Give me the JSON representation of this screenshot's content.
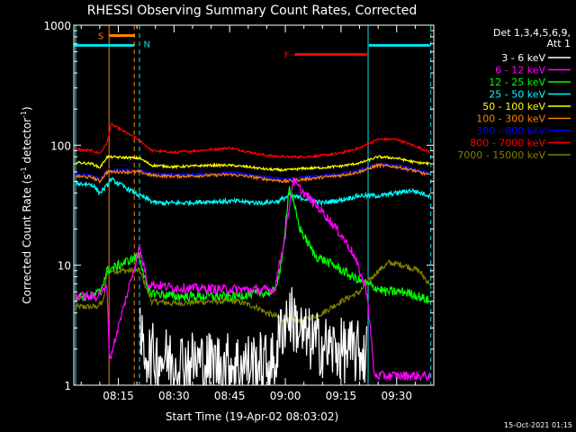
{
  "chart_data": {
    "type": "line",
    "title": "RHESSI Observing Summary Count Rates, Corrected",
    "xlabel": "Start Time (19-Apr-02 08:03:02)",
    "ylabel_main": "Corrected Count Rate (s",
    "ylabel_sup1": "-1",
    "ylabel_mid": " detector",
    "ylabel_sup2": "-1",
    "ylabel_end": ")",
    "yscale": "log",
    "ylim": [
      1,
      1000
    ],
    "y_ticks": [
      {
        "value": 1,
        "label": "1"
      },
      {
        "value": 10,
        "label": "10"
      },
      {
        "value": 100,
        "label": "100"
      },
      {
        "value": 1000,
        "label": "1000"
      }
    ],
    "xlim_minutes": [
      483,
      580
    ],
    "x_ticks": [
      {
        "minute": 495,
        "label": "08:15"
      },
      {
        "minute": 510,
        "label": "08:30"
      },
      {
        "minute": 525,
        "label": "08:45"
      },
      {
        "minute": 540,
        "label": "09:00"
      },
      {
        "minute": 555,
        "label": "09:15"
      },
      {
        "minute": 570,
        "label": "09:30"
      }
    ],
    "legend_header": [
      "Det 1,3,4,5,6,9,",
      "Att 1"
    ],
    "legend_position": "right",
    "flags": [
      {
        "label": "S",
        "color": "#ff8000",
        "start": 492.5,
        "end": 499.5,
        "level": 820
      },
      {
        "label": "N",
        "color": "#00e5ee",
        "start": 483,
        "end": 499.3,
        "level": 680
      },
      {
        "label": "N",
        "color": "#00e5ee",
        "start": 562.5,
        "end": 579,
        "level": 680
      },
      {
        "label": "F",
        "color": "#ff0000",
        "start": 542.5,
        "end": 562,
        "level": 570
      }
    ],
    "vlines": [
      {
        "minute": 483.5,
        "color": "#00e5ee",
        "style": "solid"
      },
      {
        "minute": 492.5,
        "color": "#ff8000",
        "style": "solid"
      },
      {
        "minute": 499.3,
        "color": "#ff8000",
        "style": "dashed"
      },
      {
        "minute": 500.7,
        "color": "#00e5ee",
        "style": "dashed"
      },
      {
        "minute": 562.3,
        "color": "#00e5ee",
        "style": "solid"
      },
      {
        "minute": 579.2,
        "color": "#00e5ee",
        "style": "dashed"
      }
    ],
    "series": [
      {
        "name": "3 - 6 keV",
        "color": "#ffffff",
        "noise": 0.55,
        "points": [
          [
            500.7,
            2.4
          ],
          [
            503,
            1.8
          ],
          [
            510,
            1.6
          ],
          [
            525,
            1.5
          ],
          [
            537,
            1.5
          ],
          [
            539,
            3
          ],
          [
            541,
            4
          ],
          [
            545,
            2.5
          ],
          [
            552,
            2
          ],
          [
            558,
            1.9
          ],
          [
            562,
            1.8
          ]
        ]
      },
      {
        "name": "6 - 12 keV",
        "color": "#ff00ff",
        "noise": 0.08,
        "points": [
          [
            483.5,
            5.5
          ],
          [
            489,
            5.5
          ],
          [
            492,
            6.5
          ],
          [
            492.6,
            1.6
          ],
          [
            500.7,
            14
          ],
          [
            503,
            7
          ],
          [
            510,
            6.5
          ],
          [
            525,
            6.3
          ],
          [
            537,
            6.2
          ],
          [
            540,
            18
          ],
          [
            542,
            50
          ],
          [
            545,
            40
          ],
          [
            550,
            28
          ],
          [
            555,
            18
          ],
          [
            558,
            13
          ],
          [
            560,
            9
          ],
          [
            562,
            6
          ],
          [
            564,
            1.2
          ],
          [
            579,
            1.2
          ]
        ]
      },
      {
        "name": "12 - 25 keV",
        "color": "#00ff00",
        "noise": 0.08,
        "points": [
          [
            483.5,
            5.5
          ],
          [
            488,
            5.5
          ],
          [
            490,
            6
          ],
          [
            492,
            9
          ],
          [
            500.7,
            12
          ],
          [
            503,
            6
          ],
          [
            510,
            5.5
          ],
          [
            525,
            5.5
          ],
          [
            537,
            6
          ],
          [
            539,
            10
          ],
          [
            541,
            45
          ],
          [
            544,
            20
          ],
          [
            548,
            12
          ],
          [
            553,
            10
          ],
          [
            558,
            8
          ],
          [
            562,
            7
          ],
          [
            567,
            6
          ],
          [
            572,
            6
          ],
          [
            576,
            5.5
          ],
          [
            579,
            5
          ]
        ]
      },
      {
        "name": "25 - 50 keV",
        "color": "#00ffff",
        "noise": 0.04,
        "points": [
          [
            483.5,
            48
          ],
          [
            488,
            47
          ],
          [
            490,
            40
          ],
          [
            492,
            46
          ],
          [
            493,
            52
          ],
          [
            500.7,
            38
          ],
          [
            505,
            33
          ],
          [
            512,
            33
          ],
          [
            520,
            34
          ],
          [
            528,
            34
          ],
          [
            533,
            33
          ],
          [
            538,
            34
          ],
          [
            541,
            38
          ],
          [
            545,
            36
          ],
          [
            550,
            33
          ],
          [
            555,
            35
          ],
          [
            560,
            38
          ],
          [
            566,
            38
          ],
          [
            570,
            40
          ],
          [
            574,
            42
          ],
          [
            579,
            38
          ]
        ]
      },
      {
        "name": "50 - 100 keV",
        "color": "#ffff00",
        "noise": 0.02,
        "points": [
          [
            483.5,
            72
          ],
          [
            488,
            70
          ],
          [
            490,
            65
          ],
          [
            492,
            80
          ],
          [
            500.7,
            78
          ],
          [
            504,
            68
          ],
          [
            510,
            66
          ],
          [
            520,
            68
          ],
          [
            525,
            68
          ],
          [
            530,
            66
          ],
          [
            535,
            63
          ],
          [
            540,
            62
          ],
          [
            545,
            64
          ],
          [
            550,
            65
          ],
          [
            555,
            67
          ],
          [
            560,
            71
          ],
          [
            565,
            80
          ],
          [
            570,
            78
          ],
          [
            575,
            72
          ],
          [
            579,
            70
          ]
        ]
      },
      {
        "name": "100 - 300 keV",
        "color": "#ff8000",
        "noise": 0.025,
        "points": [
          [
            483.5,
            55
          ],
          [
            488,
            54
          ],
          [
            490,
            50
          ],
          [
            492,
            60
          ],
          [
            500.7,
            60
          ],
          [
            504,
            56
          ],
          [
            510,
            55
          ],
          [
            520,
            56
          ],
          [
            525,
            57
          ],
          [
            530,
            55
          ],
          [
            535,
            52
          ],
          [
            540,
            50
          ],
          [
            545,
            52
          ],
          [
            550,
            54
          ],
          [
            555,
            56
          ],
          [
            560,
            60
          ],
          [
            565,
            68
          ],
          [
            570,
            66
          ],
          [
            575,
            61
          ],
          [
            579,
            56
          ]
        ]
      },
      {
        "name": "300 - 800 keV",
        "color": "#0000ff",
        "noise": 0.02,
        "points": [
          [
            483.5,
            57
          ],
          [
            488,
            56
          ],
          [
            490,
            52
          ],
          [
            492,
            62
          ],
          [
            500.7,
            62
          ],
          [
            504,
            58
          ],
          [
            510,
            57
          ],
          [
            520,
            58
          ],
          [
            525,
            59
          ],
          [
            530,
            57
          ],
          [
            535,
            54
          ],
          [
            540,
            52
          ],
          [
            545,
            54
          ],
          [
            550,
            56
          ],
          [
            555,
            58
          ],
          [
            560,
            62
          ],
          [
            565,
            70
          ],
          [
            570,
            68
          ],
          [
            575,
            63
          ],
          [
            579,
            58
          ]
        ]
      },
      {
        "name": "800 - 7000 keV",
        "color": "#ff0000",
        "noise": 0.02,
        "points": [
          [
            483.5,
            92
          ],
          [
            488,
            90
          ],
          [
            490,
            85
          ],
          [
            492,
            105
          ],
          [
            493,
            150
          ],
          [
            500.7,
            110
          ],
          [
            504,
            90
          ],
          [
            510,
            87
          ],
          [
            520,
            92
          ],
          [
            525,
            95
          ],
          [
            530,
            88
          ],
          [
            535,
            82
          ],
          [
            540,
            80
          ],
          [
            545,
            80
          ],
          [
            550,
            82
          ],
          [
            555,
            86
          ],
          [
            560,
            95
          ],
          [
            565,
            112
          ],
          [
            570,
            112
          ],
          [
            575,
            98
          ],
          [
            579,
            88
          ]
        ]
      },
      {
        "name": "7000 - 15000 keV",
        "color": "#808000",
        "noise": 0.05,
        "points": [
          [
            483.5,
            4.5
          ],
          [
            489,
            4.5
          ],
          [
            491,
            5
          ],
          [
            492,
            9
          ],
          [
            500.7,
            9
          ],
          [
            504,
            5
          ],
          [
            510,
            4.8
          ],
          [
            520,
            5
          ],
          [
            527,
            5
          ],
          [
            532,
            4.5
          ],
          [
            535,
            4
          ],
          [
            540,
            3.5
          ],
          [
            545,
            3.5
          ],
          [
            550,
            4
          ],
          [
            555,
            5
          ],
          [
            560,
            6
          ],
          [
            565,
            9
          ],
          [
            568,
            10.5
          ],
          [
            572,
            10
          ],
          [
            576,
            9
          ],
          [
            578,
            7.5
          ],
          [
            579,
            7
          ]
        ]
      }
    ]
  },
  "footer_timestamp": "15-Oct-2021 01:15"
}
